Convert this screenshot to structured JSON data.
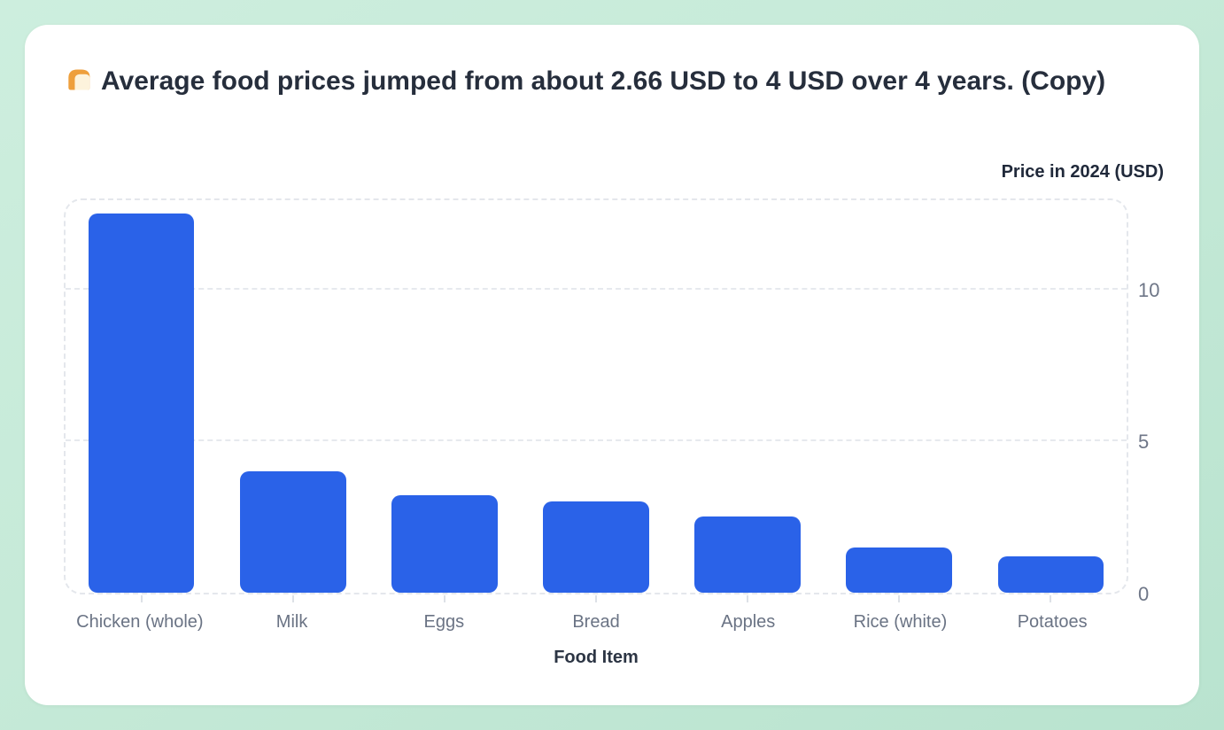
{
  "header": {
    "title_text": "Average food prices jumped from about 2.66 USD to 4 USD over 4 years. (Copy)",
    "title_emoji": "bread-emoji"
  },
  "chart_data": {
    "type": "bar",
    "title": "🍞 Average food prices jumped from about 2.66 USD to 4 USD over 4 years. (Copy)",
    "categories": [
      "Chicken (whole)",
      "Milk",
      "Eggs",
      "Bread",
      "Apples",
      "Rice (white)",
      "Potatoes"
    ],
    "values": [
      12.45,
      4.0,
      3.2,
      3.0,
      2.5,
      1.5,
      1.2
    ],
    "xlabel": "Food Item",
    "ylabel": "Price in 2024 (USD)",
    "ylim": [
      0,
      12.9
    ],
    "yticks": [
      0,
      5,
      10
    ],
    "grid": "horizontal-dashed",
    "legend": "none",
    "bar_color": "#2a62e8",
    "background_color": "#c6ead8",
    "card_color": "#ffffff"
  }
}
